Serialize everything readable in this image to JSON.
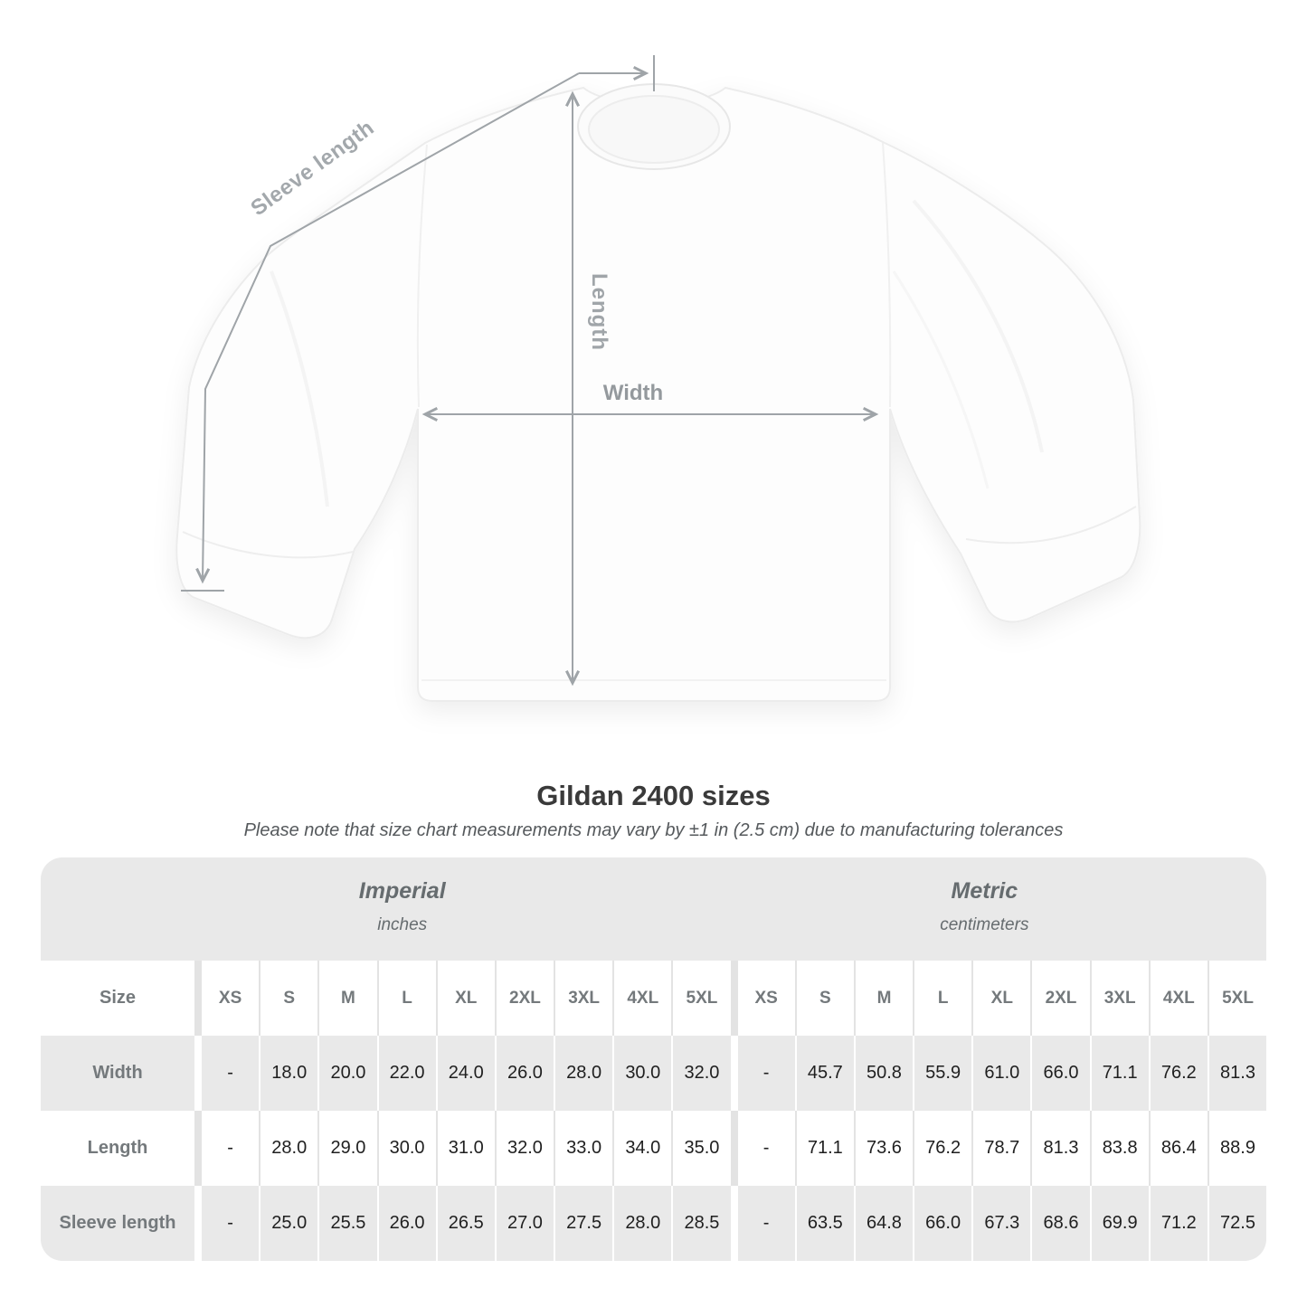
{
  "title": "Gildan 2400 sizes",
  "note": "Please note that size chart measurements may vary by ±1 in (2.5 cm) due to manufacturing tolerances",
  "diagram": {
    "labels": {
      "sleeve_length": "Sleeve length",
      "length": "Length",
      "width": "Width"
    }
  },
  "table": {
    "size_header_label": "Size",
    "sizes": [
      "XS",
      "S",
      "M",
      "L",
      "XL",
      "2XL",
      "3XL",
      "4XL",
      "5XL"
    ],
    "groups": [
      {
        "name": "Imperial",
        "unit": "inches"
      },
      {
        "name": "Metric",
        "unit": "centimeters"
      }
    ],
    "rows": [
      {
        "label": "Width",
        "imperial": [
          "-",
          "18.0",
          "20.0",
          "22.0",
          "24.0",
          "26.0",
          "28.0",
          "30.0",
          "32.0"
        ],
        "metric": [
          "-",
          "45.7",
          "50.8",
          "55.9",
          "61.0",
          "66.0",
          "71.1",
          "76.2",
          "81.3"
        ]
      },
      {
        "label": "Length",
        "imperial": [
          "-",
          "28.0",
          "29.0",
          "30.0",
          "31.0",
          "32.0",
          "33.0",
          "34.0",
          "35.0"
        ],
        "metric": [
          "-",
          "71.1",
          "73.6",
          "76.2",
          "78.7",
          "81.3",
          "83.8",
          "86.4",
          "88.9"
        ]
      },
      {
        "label": "Sleeve length",
        "imperial": [
          "-",
          "25.0",
          "25.5",
          "26.0",
          "26.5",
          "27.0",
          "27.5",
          "28.0",
          "28.5"
        ],
        "metric": [
          "-",
          "63.5",
          "64.8",
          "66.0",
          "67.3",
          "68.6",
          "69.9",
          "71.2",
          "72.5"
        ]
      }
    ]
  },
  "colors": {
    "table_stripe": "#e9e9e9",
    "separator_on_white": "#e3e3e3",
    "header_text": "#74797c",
    "data_text": "#1f1f1f",
    "measurement_line": "#9fa4a8"
  }
}
